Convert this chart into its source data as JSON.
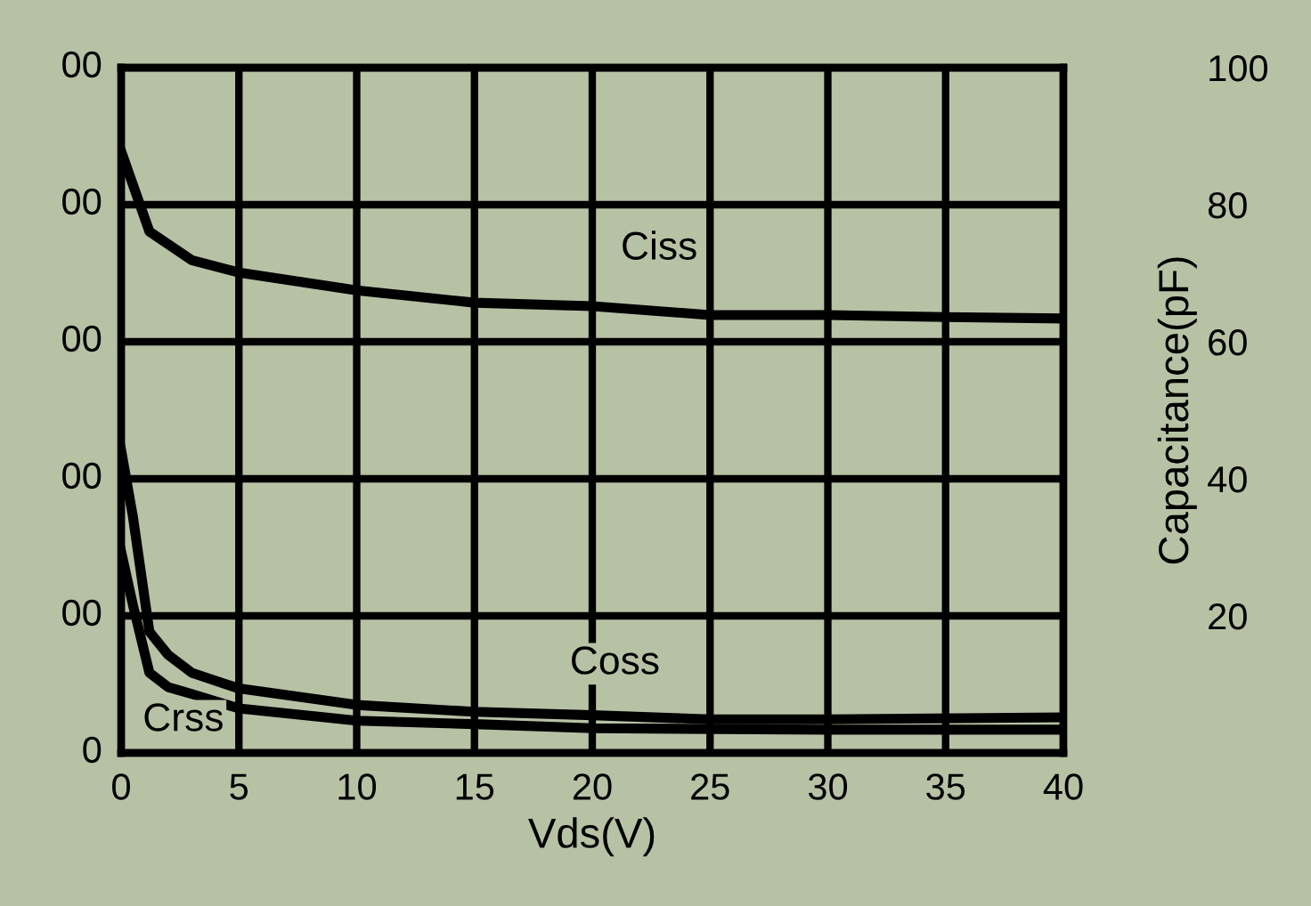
{
  "chart_data": {
    "type": "line",
    "xlabel": "Vds(V)",
    "y2label": "Capacitance(pF)",
    "xlim": [
      0,
      40
    ],
    "xticks": [
      0,
      5,
      10,
      15,
      20,
      25,
      30,
      35,
      40
    ],
    "y2lim": [
      0,
      100
    ],
    "y2ticks": [
      20,
      40,
      60,
      80,
      100
    ],
    "grid": true,
    "marker": "none",
    "line_style": "solid",
    "series": [
      {
        "axis": "y2",
        "color": "#000000",
        "x": [
          0,
          1.2,
          3,
          5,
          10,
          15,
          20,
          25,
          30,
          35,
          40
        ],
        "values": [
          87.8,
          76.1,
          71.9,
          70.1,
          67.5,
          65.7,
          65.2,
          63.9,
          63.9,
          63.6,
          63.4
        ]
      },
      {
        "axis": "y2",
        "color": "#000000",
        "x": [
          0,
          0.5,
          1.2,
          2,
          3,
          5,
          10,
          15,
          20,
          25,
          30,
          40
        ],
        "values": [
          44.2,
          34.5,
          17.7,
          14.3,
          11.7,
          9.4,
          7.0,
          6.0,
          5.5,
          4.9,
          4.9,
          5.2
        ]
      },
      {
        "axis": "y2",
        "color": "#000000",
        "x": [
          0,
          0.5,
          1.2,
          2,
          3,
          5,
          10,
          15,
          20,
          30,
          40
        ],
        "values": [
          29.4,
          21.6,
          11.7,
          9.6,
          8.6,
          6.5,
          4.7,
          4.2,
          3.6,
          3.4,
          3.4
        ]
      }
    ],
    "annotations": [
      "Ciss",
      "Coss",
      "Crss",
      "0",
      "00",
      "00",
      "00",
      "00",
      "00"
    ]
  }
}
